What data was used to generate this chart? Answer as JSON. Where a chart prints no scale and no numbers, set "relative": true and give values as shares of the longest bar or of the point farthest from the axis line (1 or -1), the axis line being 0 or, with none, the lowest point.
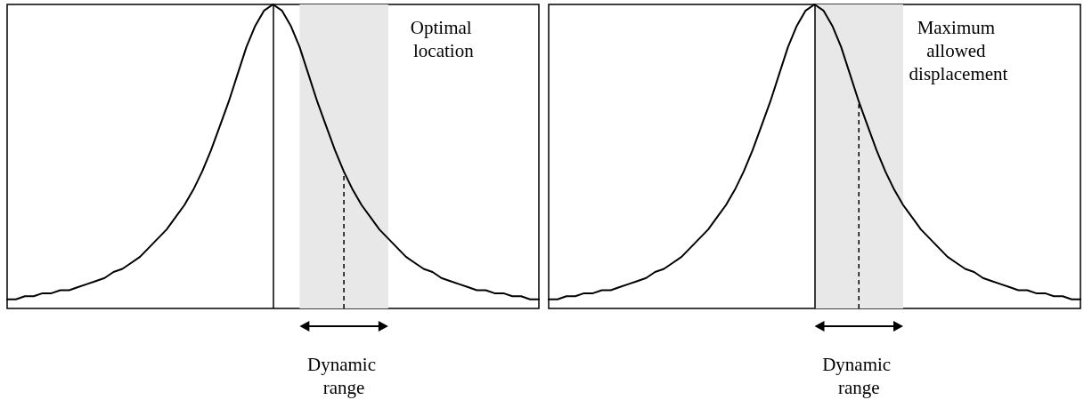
{
  "chart_data": [
    {
      "type": "line",
      "relative": true,
      "marker": "none",
      "categories": [
        null,
        null,
        null,
        null,
        null,
        null,
        null,
        null,
        null,
        null,
        null,
        null,
        null,
        null,
        null,
        null,
        null,
        null,
        null,
        null,
        null,
        null,
        null,
        null,
        null,
        null,
        null,
        null,
        null,
        null,
        null,
        null,
        null,
        null,
        null,
        null,
        null,
        null,
        null,
        null,
        null,
        null,
        null,
        null,
        null,
        null,
        null,
        null,
        null,
        null,
        null,
        null,
        null,
        null,
        null,
        null,
        null,
        null,
        null,
        null,
        null
      ],
      "series": [
        {
          "color": "#000000",
          "values": [
            0.03,
            0.03,
            0.04,
            0.04,
            0.05,
            0.05,
            0.06,
            0.06,
            0.07,
            0.08,
            0.09,
            0.1,
            0.12,
            0.13,
            0.15,
            0.17,
            0.2,
            0.23,
            0.26,
            0.3,
            0.34,
            0.39,
            0.45,
            0.52,
            0.6,
            0.68,
            0.77,
            0.86,
            0.93,
            0.98,
            1,
            0.98,
            0.93,
            0.86,
            0.77,
            0.68,
            0.6,
            0.52,
            0.45,
            0.39,
            0.34,
            0.3,
            0.26,
            0.23,
            0.2,
            0.17,
            0.15,
            0.13,
            0.12,
            0.1,
            0.09,
            0.08,
            0.07,
            0.06,
            0.06,
            0.05,
            0.05,
            0.04,
            0.04,
            0.03,
            0.03
          ]
        }
      ],
      "annotations": [
        "Optimal location",
        "Dynamic range"
      ]
    },
    {
      "type": "line",
      "relative": true,
      "marker": "none",
      "categories": [
        null,
        null,
        null,
        null,
        null,
        null,
        null,
        null,
        null,
        null,
        null,
        null,
        null,
        null,
        null,
        null,
        null,
        null,
        null,
        null,
        null,
        null,
        null,
        null,
        null,
        null,
        null,
        null,
        null,
        null,
        null,
        null,
        null,
        null,
        null,
        null,
        null,
        null,
        null,
        null,
        null,
        null,
        null,
        null,
        null,
        null,
        null,
        null,
        null,
        null,
        null,
        null,
        null,
        null,
        null,
        null,
        null,
        null,
        null,
        null,
        null
      ],
      "series": [
        {
          "color": "#000000",
          "values": [
            0.03,
            0.03,
            0.04,
            0.04,
            0.05,
            0.05,
            0.06,
            0.06,
            0.07,
            0.08,
            0.09,
            0.1,
            0.12,
            0.13,
            0.15,
            0.17,
            0.2,
            0.23,
            0.26,
            0.3,
            0.34,
            0.39,
            0.45,
            0.52,
            0.6,
            0.68,
            0.77,
            0.86,
            0.93,
            0.98,
            1,
            0.98,
            0.93,
            0.86,
            0.77,
            0.68,
            0.6,
            0.52,
            0.45,
            0.39,
            0.34,
            0.3,
            0.26,
            0.23,
            0.2,
            0.17,
            0.15,
            0.13,
            0.12,
            0.1,
            0.09,
            0.08,
            0.07,
            0.06,
            0.06,
            0.05,
            0.05,
            0.04,
            0.04,
            0.03,
            0.03
          ]
        }
      ],
      "annotations": [
        "Maximum allowed displacement",
        "Dynamic range"
      ]
    }
  ]
}
